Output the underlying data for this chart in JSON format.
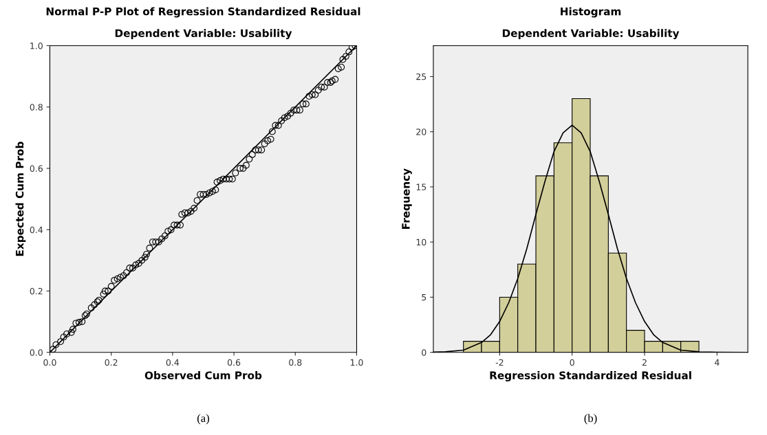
{
  "chart_data": [
    {
      "type": "scatter",
      "title": "Normal P-P Plot of Regression Standardized Residual",
      "subtitle": "Dependent Variable: Usability",
      "xlabel": "Observed Cum Prob",
      "ylabel": "Expected Cum Prob",
      "grid": false,
      "legend": false,
      "xlim": [
        0,
        1
      ],
      "ylim": [
        0,
        1
      ],
      "xticks": [
        {
          "value": 0,
          "label": "0.0"
        },
        {
          "value": 0.2,
          "label": "0.2"
        },
        {
          "value": 0.4,
          "label": "0.4"
        },
        {
          "value": 0.6,
          "label": "0.6"
        },
        {
          "value": 0.8,
          "label": "0.8"
        },
        {
          "value": 1,
          "label": "1.0"
        }
      ],
      "yticks": [
        {
          "value": 0,
          "label": "0.0"
        },
        {
          "value": 0.2,
          "label": "0.2"
        },
        {
          "value": 0.4,
          "label": "0.4"
        },
        {
          "value": 0.6,
          "label": "0.6"
        },
        {
          "value": 0.8,
          "label": "0.8"
        },
        {
          "value": 1,
          "label": "1.0"
        }
      ],
      "annotations": [
        "(a)"
      ],
      "series": [
        {
          "marker": "circle",
          "color": "#000000",
          "x": [
            0.01,
            0.02,
            0.035,
            0.045,
            0.055,
            0.07,
            0.075,
            0.085,
            0.095,
            0.105,
            0.115,
            0.12,
            0.135,
            0.145,
            0.155,
            0.16,
            0.175,
            0.18,
            0.19,
            0.2,
            0.21,
            0.22,
            0.23,
            0.24,
            0.25,
            0.26,
            0.27,
            0.28,
            0.29,
            0.3,
            0.31,
            0.315,
            0.325,
            0.335,
            0.345,
            0.355,
            0.365,
            0.375,
            0.385,
            0.395,
            0.405,
            0.415,
            0.425,
            0.43,
            0.44,
            0.45,
            0.46,
            0.47,
            0.48,
            0.49,
            0.5,
            0.51,
            0.52,
            0.53,
            0.54,
            0.545,
            0.555,
            0.565,
            0.575,
            0.585,
            0.595,
            0.605,
            0.62,
            0.63,
            0.64,
            0.65,
            0.66,
            0.67,
            0.68,
            0.69,
            0.7,
            0.71,
            0.72,
            0.725,
            0.735,
            0.745,
            0.755,
            0.765,
            0.775,
            0.785,
            0.795,
            0.805,
            0.815,
            0.825,
            0.835,
            0.845,
            0.855,
            0.865,
            0.875,
            0.885,
            0.895,
            0.905,
            0.915,
            0.92,
            0.93,
            0.94,
            0.95,
            0.955,
            0.965,
            0.975,
            0.985,
            0.995
          ],
          "values": [
            0.01,
            0.025,
            0.035,
            0.05,
            0.06,
            0.065,
            0.075,
            0.095,
            0.098,
            0.1,
            0.12,
            0.125,
            0.145,
            0.155,
            0.165,
            0.17,
            0.19,
            0.2,
            0.2,
            0.215,
            0.235,
            0.24,
            0.245,
            0.25,
            0.26,
            0.275,
            0.275,
            0.285,
            0.29,
            0.3,
            0.31,
            0.32,
            0.34,
            0.36,
            0.36,
            0.36,
            0.37,
            0.38,
            0.395,
            0.4,
            0.415,
            0.415,
            0.415,
            0.45,
            0.455,
            0.455,
            0.46,
            0.47,
            0.495,
            0.515,
            0.515,
            0.515,
            0.52,
            0.525,
            0.53,
            0.555,
            0.56,
            0.565,
            0.565,
            0.565,
            0.565,
            0.585,
            0.6,
            0.6,
            0.61,
            0.63,
            0.645,
            0.66,
            0.66,
            0.66,
            0.68,
            0.69,
            0.695,
            0.72,
            0.74,
            0.74,
            0.755,
            0.765,
            0.77,
            0.78,
            0.79,
            0.79,
            0.79,
            0.81,
            0.81,
            0.835,
            0.84,
            0.84,
            0.855,
            0.865,
            0.865,
            0.88,
            0.88,
            0.885,
            0.89,
            0.925,
            0.93,
            0.955,
            0.965,
            0.98,
            0.995,
            1.0
          ]
        },
        {
          "type": "line",
          "marker": "none",
          "color": "#000000",
          "x": [
            0,
            1
          ],
          "values": [
            0,
            1
          ]
        }
      ]
    },
    {
      "type": "histogram",
      "title": "Histogram",
      "subtitle": "Dependent Variable: Usability",
      "xlabel": "Regression Standardized Residual",
      "ylabel": "Frequency",
      "grid": false,
      "legend": false,
      "xlim": [
        -3.83,
        4.85
      ],
      "ylim": [
        0,
        27.8
      ],
      "xticks": [
        -2,
        0,
        2,
        4
      ],
      "yticks": [
        0,
        5,
        10,
        15,
        20,
        25
      ],
      "annotations": [
        "(b)"
      ],
      "series": [
        {
          "color": "#d3cf9a",
          "bins": [
            -3,
            -2.5,
            -2,
            -1.5,
            -1,
            -0.5,
            0,
            0.5,
            1,
            1.5,
            2,
            2.5,
            3,
            3.5
          ],
          "values": [
            1,
            1,
            5,
            8,
            16,
            19,
            23,
            16,
            9,
            2,
            1,
            1,
            1
          ]
        },
        {
          "type": "line",
          "marker": "none",
          "color": "#000000",
          "x": [
            -3.83,
            -3.5,
            -3,
            -2.5,
            -2.25,
            -2,
            -1.75,
            -1.5,
            -1.25,
            -1,
            -0.75,
            -0.5,
            -0.25,
            0,
            0.25,
            0.5,
            0.75,
            1,
            1.25,
            1.5,
            1.75,
            2,
            2.25,
            2.5,
            3,
            3.5,
            4,
            4.85
          ],
          "values": [
            0.02,
            0.05,
            0.2,
            0.9,
            1.6,
            2.8,
            4.5,
            6.7,
            9.4,
            12.5,
            15.5,
            18.2,
            19.9,
            20.6,
            19.9,
            18.2,
            15.5,
            12.5,
            9.4,
            6.7,
            4.5,
            2.8,
            1.6,
            0.9,
            0.2,
            0.05,
            0.01,
            0
          ]
        }
      ]
    }
  ]
}
